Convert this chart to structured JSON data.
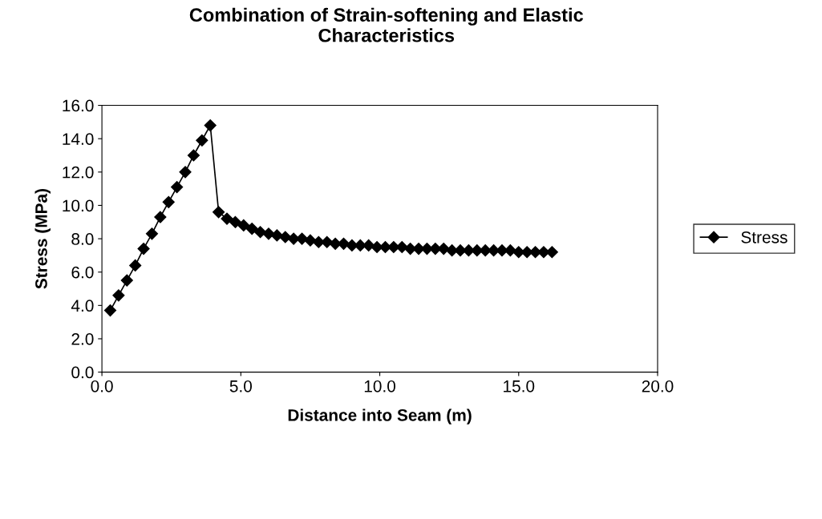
{
  "chart_data": {
    "type": "line",
    "title": "Combination of Strain-softening and Elastic\nCharacteristics",
    "xlabel": "Distance into Seam (m)",
    "ylabel": "Stress (MPa)",
    "x": [
      0.3,
      0.6,
      0.9,
      1.2,
      1.5,
      1.8,
      2.1,
      2.4,
      2.7,
      3.0,
      3.3,
      3.6,
      3.9,
      4.2,
      4.5,
      4.8,
      5.1,
      5.4,
      5.7,
      6.0,
      6.3,
      6.6,
      6.9,
      7.2,
      7.5,
      7.8,
      8.1,
      8.4,
      8.7,
      9.0,
      9.3,
      9.6,
      9.9,
      10.2,
      10.5,
      10.8,
      11.1,
      11.4,
      11.7,
      12.0,
      12.3,
      12.6,
      12.9,
      13.2,
      13.5,
      13.8,
      14.1,
      14.4,
      14.7,
      15.0,
      15.3,
      15.6,
      15.9,
      16.2
    ],
    "series": [
      {
        "name": "Stress",
        "color": "#000000",
        "values": [
          3.7,
          4.6,
          5.5,
          6.4,
          7.4,
          8.3,
          9.3,
          10.2,
          11.1,
          12.0,
          13.0,
          13.9,
          14.8,
          9.6,
          9.2,
          9.0,
          8.8,
          8.6,
          8.4,
          8.3,
          8.2,
          8.1,
          8.0,
          8.0,
          7.9,
          7.8,
          7.8,
          7.7,
          7.7,
          7.6,
          7.6,
          7.6,
          7.5,
          7.5,
          7.5,
          7.5,
          7.4,
          7.4,
          7.4,
          7.4,
          7.4,
          7.3,
          7.3,
          7.3,
          7.3,
          7.3,
          7.3,
          7.3,
          7.3,
          7.2,
          7.2,
          7.2,
          7.2,
          7.2
        ]
      }
    ],
    "xlim": [
      0,
      20
    ],
    "xticks": [
      {
        "value": 0,
        "label": "0.0"
      },
      {
        "value": 5,
        "label": "5.0"
      },
      {
        "value": 10,
        "label": "10.0"
      },
      {
        "value": 15,
        "label": "15.0"
      },
      {
        "value": 20,
        "label": "20.0"
      }
    ],
    "ylim": [
      0,
      16
    ],
    "yticks": [
      {
        "value": 0,
        "label": "0.0"
      },
      {
        "value": 2,
        "label": "2.0"
      },
      {
        "value": 4,
        "label": "4.0"
      },
      {
        "value": 6,
        "label": "6.0"
      },
      {
        "value": 8,
        "label": "8.0"
      },
      {
        "value": 10,
        "label": "10.0"
      },
      {
        "value": 12,
        "label": "12.0"
      },
      {
        "value": 14,
        "label": "14.0"
      },
      {
        "value": 16,
        "label": "16.0"
      }
    ],
    "marker": "diamond",
    "line_style": "solid",
    "legend": "right",
    "grid": false
  }
}
